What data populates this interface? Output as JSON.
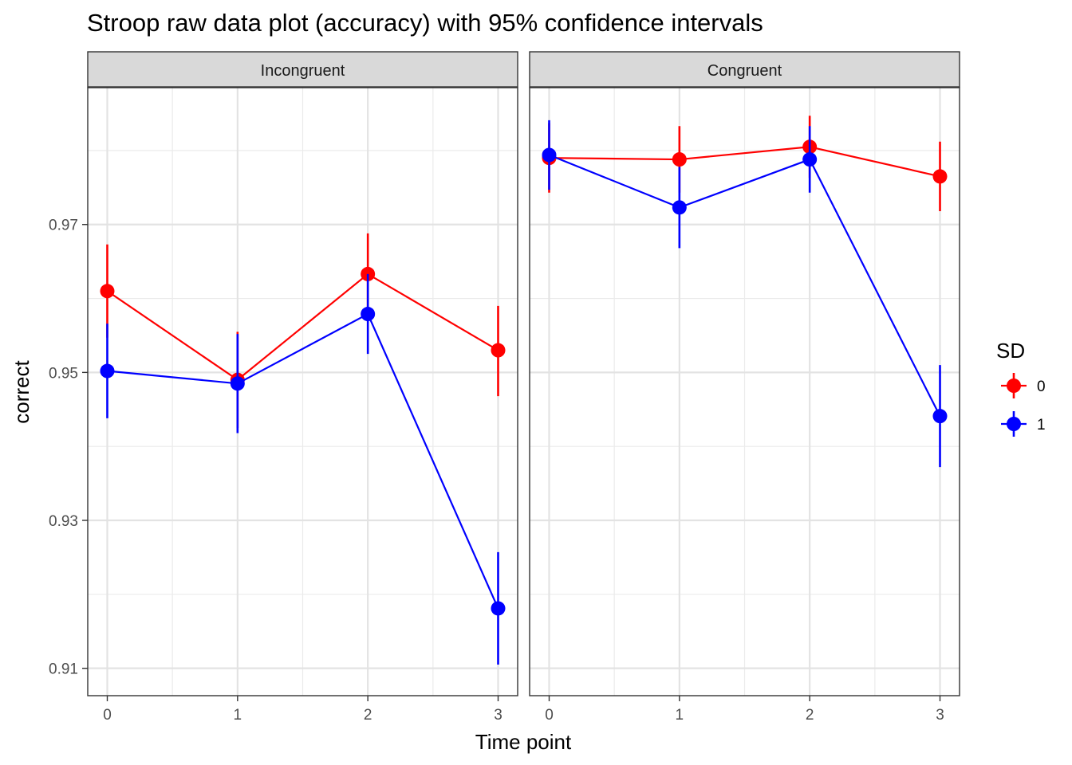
{
  "chart_data": {
    "type": "line",
    "title": "Stroop raw data plot (accuracy) with 95% confidence intervals",
    "xlabel": "Time point",
    "ylabel": "correct",
    "x": [
      0,
      1,
      2,
      3
    ],
    "x_ticks": [
      "0",
      "1",
      "2",
      "3"
    ],
    "xlim": [
      -0.15,
      3.15
    ],
    "ylim": [
      0.9063,
      0.9885
    ],
    "y_ticks": [
      0.91,
      0.93,
      0.95,
      0.97
    ],
    "y_tick_labels": [
      "0.91",
      "0.93",
      "0.95",
      "0.97"
    ],
    "grid": true,
    "legend": {
      "title": "SD",
      "position": "right",
      "entries": [
        "0",
        "1"
      ]
    },
    "series_colors": {
      "0": "#ff0000",
      "1": "#0000ff"
    },
    "panels": [
      {
        "name": "Incongruent",
        "series": [
          {
            "name": "0",
            "values": [
              0.961,
              0.949,
              0.9633,
              0.953
            ],
            "ci_lower": [
              0.9547,
              0.9425,
              0.9578,
              0.9468
            ],
            "ci_upper": [
              0.9673,
              0.9555,
              0.9688,
              0.959
            ]
          },
          {
            "name": "1",
            "values": [
              0.9502,
              0.9485,
              0.9579,
              0.9181
            ],
            "ci_lower": [
              0.9438,
              0.9418,
              0.9525,
              0.9105
            ],
            "ci_upper": [
              0.9566,
              0.9552,
              0.9633,
              0.9257
            ]
          }
        ]
      },
      {
        "name": "Congruent",
        "series": [
          {
            "name": "0",
            "values": [
              0.979,
              0.9788,
              0.9805,
              0.9765
            ],
            "ci_lower": [
              0.9743,
              0.9743,
              0.9763,
              0.9718
            ],
            "ci_upper": [
              0.9837,
              0.9833,
              0.9847,
              0.9812
            ]
          },
          {
            "name": "1",
            "values": [
              0.9794,
              0.9723,
              0.9788,
              0.9441
            ],
            "ci_lower": [
              0.9747,
              0.9668,
              0.9743,
              0.9372
            ],
            "ci_upper": [
              0.9841,
              0.9778,
              0.9833,
              0.951
            ]
          }
        ]
      }
    ]
  }
}
